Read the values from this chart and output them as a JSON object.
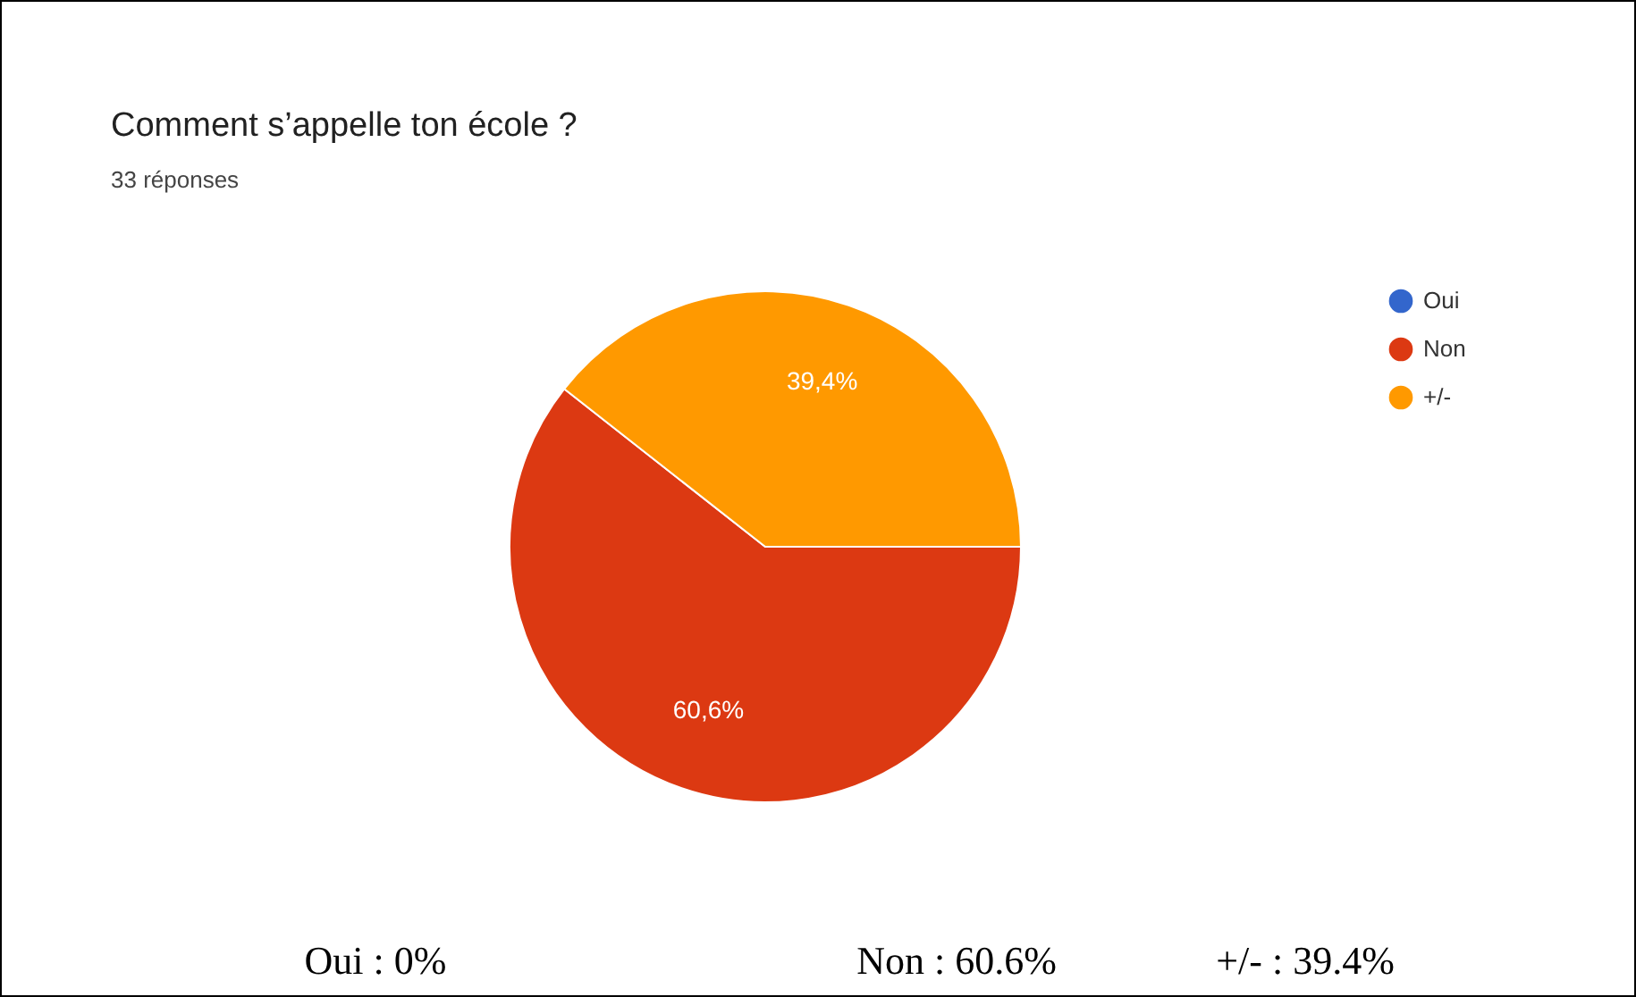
{
  "chart_data": {
    "type": "pie",
    "title": "Comment s’appelle ton école ?",
    "subtitle": "33 réponses",
    "categories": [
      "Oui",
      "Non",
      "+/-"
    ],
    "values": [
      0,
      60.6,
      39.4
    ],
    "colors": [
      "#3366cc",
      "#dc3912",
      "#ff9900"
    ],
    "value_labels": [
      null,
      "60,6%",
      "39,4%"
    ],
    "legend": "top right",
    "annotations": [
      "Oui : 0%",
      "Non : 60.6%",
      "+/- : 39.4%"
    ]
  }
}
